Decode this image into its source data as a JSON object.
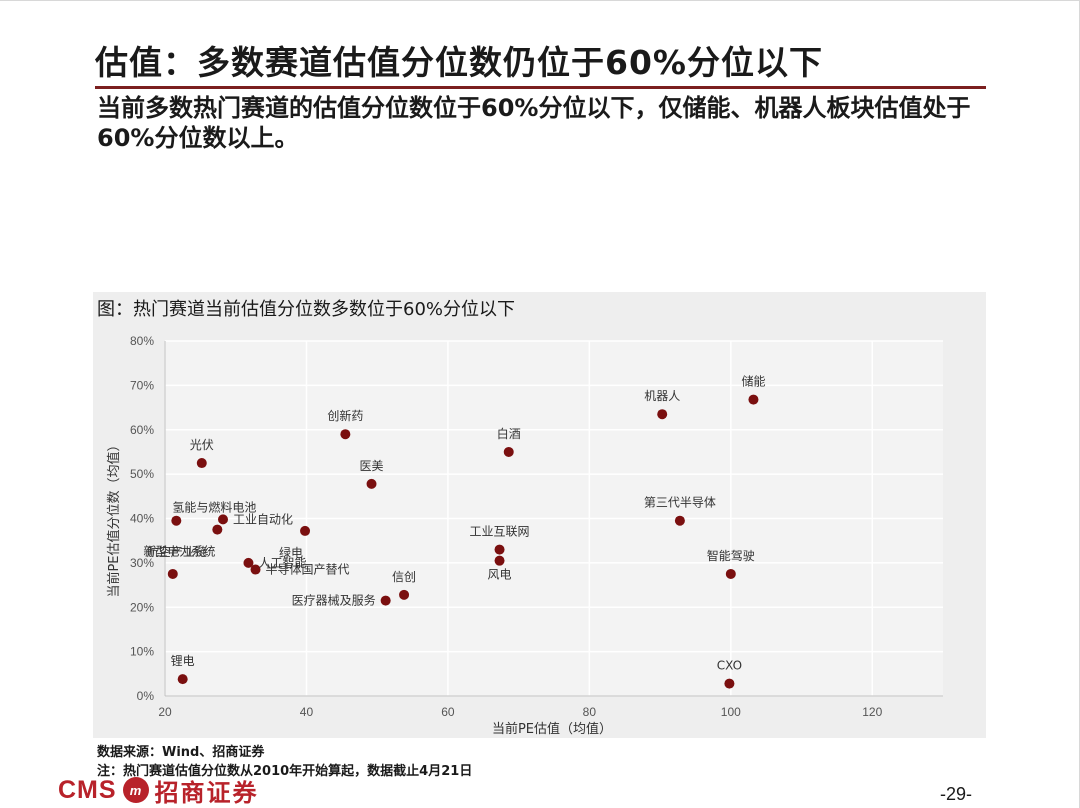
{
  "slide": {
    "title": "估值：多数赛道估值分位数仍位于60%分位以下",
    "subtitle": "当前多数热门赛道的估值分位数位于60%分位以下，仅储能、机器人板块估值处于60%分位数以上。",
    "caption": "图：热门赛道当前估值分位数多数位于60%分位以下",
    "source": "数据来源：Wind、招商证券",
    "note": "注：热门赛道估值分位数从2010年开始算起，数据截止4月21日",
    "page_number": "-29-",
    "logo": {
      "cms": "CMS",
      "badge": "m",
      "name": "招商证券"
    },
    "colors": {
      "accent": "#7b1f1f",
      "marker": "#7a0f0f",
      "logo": "#b8222a"
    }
  },
  "chart_data": {
    "type": "scatter",
    "title": "图：热门赛道当前估值分位数多数位于60%分位以下",
    "xlabel": "当前PE估值（均值）",
    "ylabel": "当前PE估值分位数（均值）",
    "xlim": [
      20,
      130
    ],
    "ylim": [
      0,
      80
    ],
    "xticks": [
      20,
      40,
      60,
      80,
      100,
      120
    ],
    "yticks": [
      0,
      10,
      20,
      30,
      40,
      50,
      60,
      70,
      80
    ],
    "ytick_labels": [
      "0%",
      "10%",
      "20%",
      "30%",
      "40%",
      "50%",
      "60%",
      "70%",
      "80%"
    ],
    "grid": true,
    "series_color": "#7a0f0f",
    "points": [
      {
        "name": "光伏",
        "x": 25.2,
        "y": 52.5,
        "label_pos": "above"
      },
      {
        "name": "创新药",
        "x": 45.5,
        "y": 59.0,
        "label_pos": "above"
      },
      {
        "name": "医美",
        "x": 49.2,
        "y": 47.8,
        "label_pos": "above"
      },
      {
        "name": "白酒",
        "x": 68.6,
        "y": 55.0,
        "label_pos": "above"
      },
      {
        "name": "机器人",
        "x": 90.3,
        "y": 63.5,
        "label_pos": "above"
      },
      {
        "name": "储能",
        "x": 103.2,
        "y": 66.8,
        "label_pos": "above"
      },
      {
        "name": "氢能与燃料电池",
        "x": 21.6,
        "y": 39.5,
        "label_pos": "above-right"
      },
      {
        "name": "工业自动化",
        "x": 28.2,
        "y": 39.8,
        "label_pos": "right"
      },
      {
        "name": "新型电力系统",
        "x": 27.4,
        "y": 37.5,
        "label_pos": "below-left"
      },
      {
        "name": "绿电",
        "x": 39.8,
        "y": 37.2,
        "label_pos": "below-left"
      },
      {
        "name": "航空产业链",
        "x": 21.1,
        "y": 27.5,
        "label_pos": "above-left"
      },
      {
        "name": "人工智能",
        "x": 31.8,
        "y": 30.0,
        "label_pos": "right"
      },
      {
        "name": "半导体国产替代",
        "x": 32.8,
        "y": 28.5,
        "label_pos": "right"
      },
      {
        "name": "医疗器械及服务",
        "x": 51.2,
        "y": 21.5,
        "label_pos": "left"
      },
      {
        "name": "信创",
        "x": 53.8,
        "y": 22.8,
        "label_pos": "above"
      },
      {
        "name": "工业互联网",
        "x": 67.3,
        "y": 33.0,
        "label_pos": "above"
      },
      {
        "name": "风电",
        "x": 67.3,
        "y": 30.5,
        "label_pos": "below"
      },
      {
        "name": "第三代半导体",
        "x": 92.8,
        "y": 39.5,
        "label_pos": "above"
      },
      {
        "name": "智能驾驶",
        "x": 100.0,
        "y": 27.5,
        "label_pos": "above"
      },
      {
        "name": "锂电",
        "x": 22.5,
        "y": 3.8,
        "label_pos": "above"
      },
      {
        "name": "CXO",
        "x": 99.8,
        "y": 2.8,
        "label_pos": "above"
      }
    ]
  }
}
